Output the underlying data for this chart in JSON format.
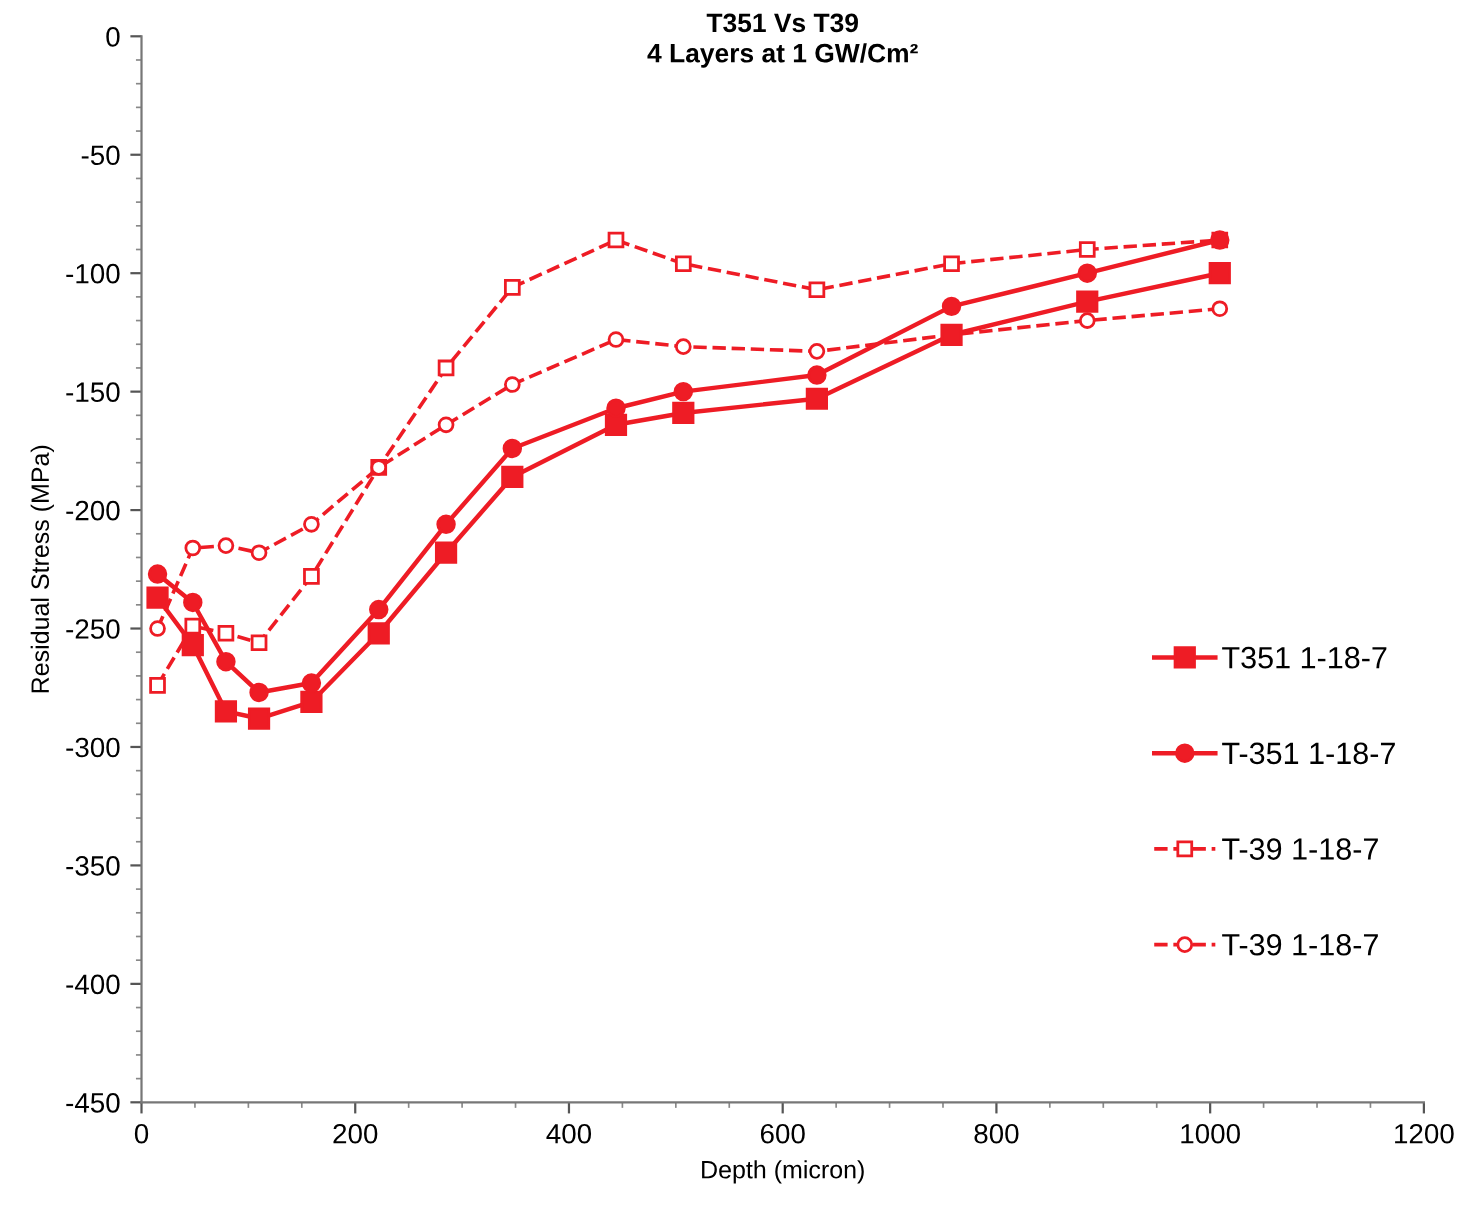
{
  "chart_data": {
    "type": "line",
    "title": "T351 Vs T39\n4 Layers at 1 GW/Cm²",
    "xlabel": "Depth (micron)",
    "ylabel": "Residual Stress (MPa)",
    "x": [
      15,
      48,
      79,
      110,
      159,
      222,
      285,
      347,
      444,
      507,
      632,
      758,
      885,
      1009
    ],
    "series": [
      {
        "name": "T351 1-18-7",
        "color": "#ee1c25",
        "marker": "square",
        "line_style": "solid",
        "values": [
          -237,
          -257,
          -285,
          -288,
          -281,
          -252,
          -218,
          -186,
          -164,
          -159,
          -153,
          -126,
          -112,
          -100
        ]
      },
      {
        "name": "T-351 1-18-7",
        "color": "#ee1c25",
        "marker": "circle",
        "line_style": "solid",
        "values": [
          -227,
          -239,
          -264,
          -277,
          -273,
          -242,
          -206,
          -174,
          -157,
          -150,
          -143,
          -114,
          -100,
          -86
        ]
      },
      {
        "name": "T-39 1-18-7",
        "color": "#ee1c25",
        "marker": "square",
        "line_style": "dashed",
        "values": [
          -274,
          -249,
          -252,
          -256,
          -228,
          -182,
          -140,
          -106,
          -86,
          -96,
          -107,
          -96,
          -90,
          -86
        ]
      },
      {
        "name": "T-39 1-18-7",
        "color": "#ee1c25",
        "marker": "circle",
        "line_style": "dashed",
        "values": [
          -250,
          -216,
          -215,
          -218,
          -206,
          -182,
          -164,
          -147,
          -128,
          -131,
          -133,
          -126,
          -120,
          -115
        ]
      }
    ],
    "xlim": [
      0,
      1200
    ],
    "xticks": [
      0,
      200,
      400,
      600,
      800,
      1000,
      1200
    ],
    "ylim": [
      -450,
      0
    ],
    "yticks": [
      -450,
      -400,
      -350,
      -300,
      -250,
      -200,
      -150,
      -100,
      -50,
      0
    ],
    "grid": false,
    "legend": "right"
  }
}
